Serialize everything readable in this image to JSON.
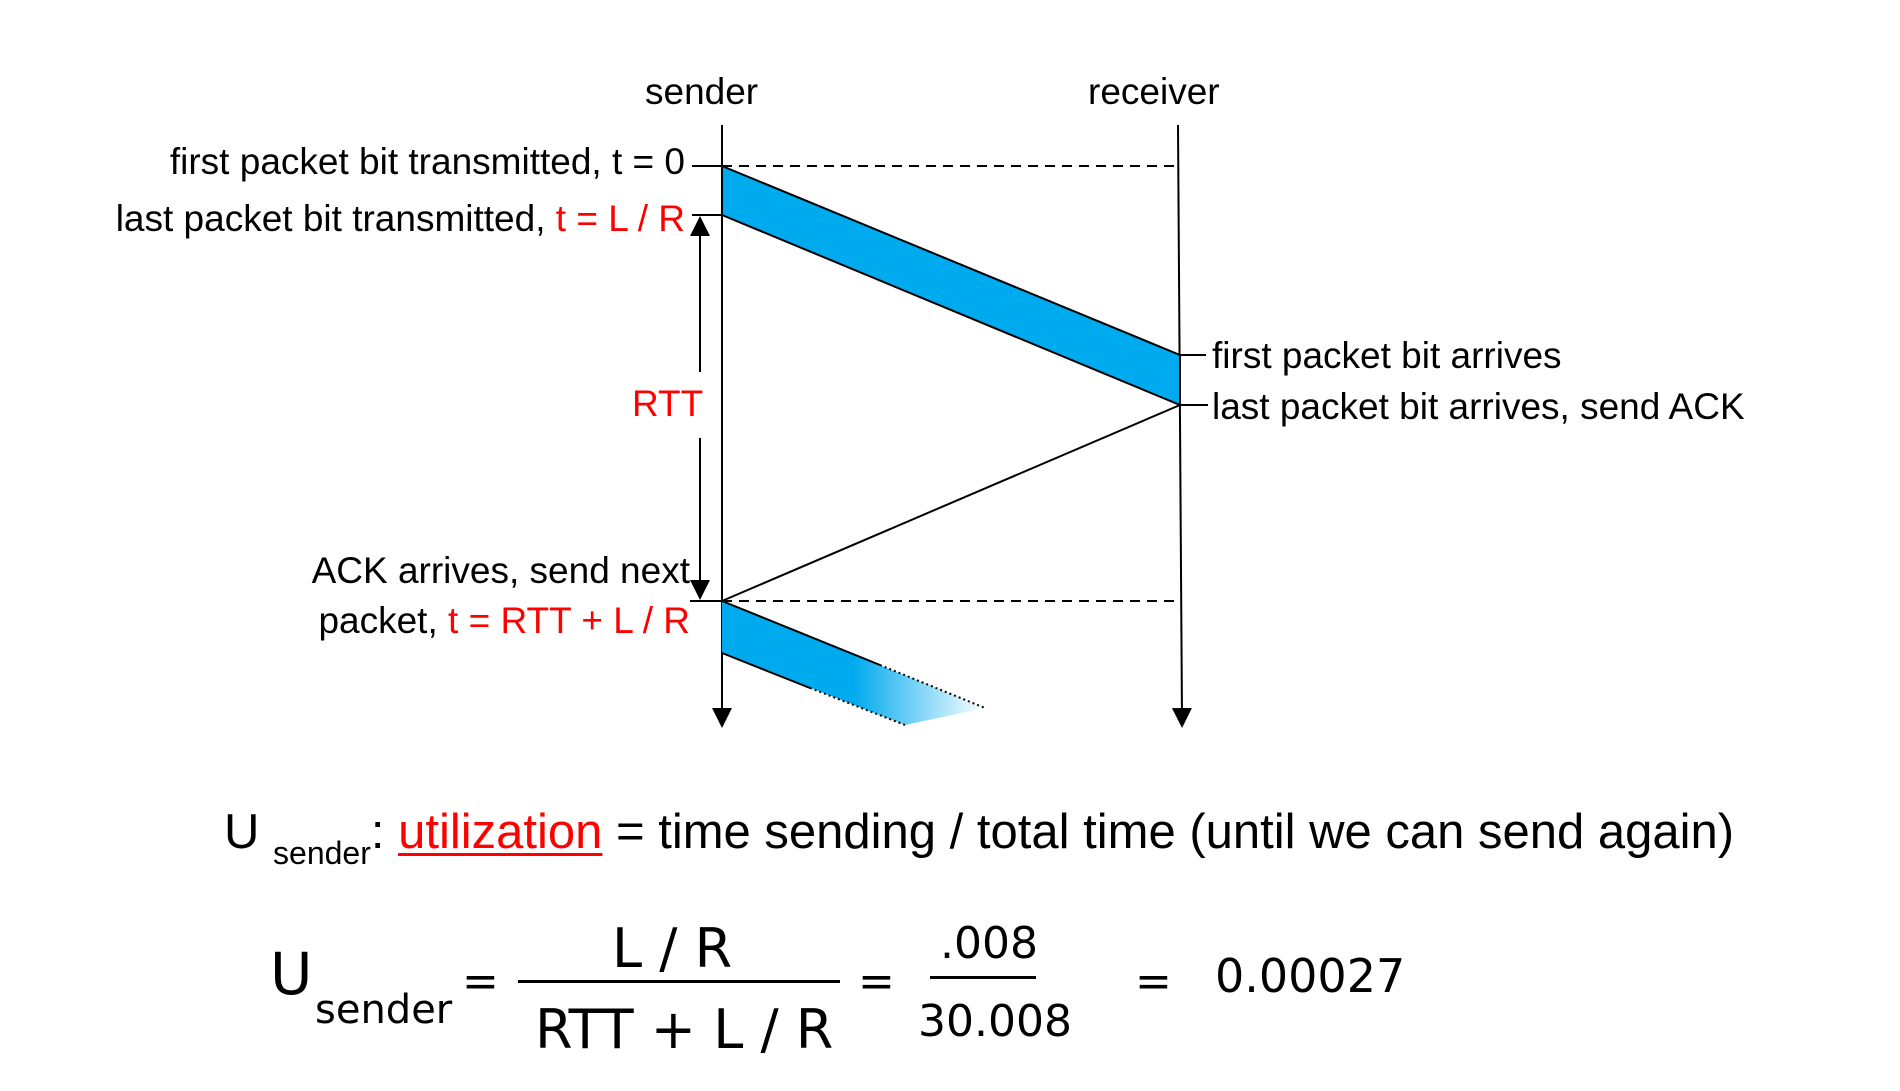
{
  "columns": {
    "sender": "sender",
    "receiver": "receiver"
  },
  "sender_labels": {
    "first_bit": "first packet bit transmitted, t = 0",
    "last_bit_prefix": "last packet bit transmitted, ",
    "last_bit_time": "t = L / R",
    "rtt": "RTT",
    "ack_line1": "ACK arrives, send next",
    "ack_line2_prefix": "packet, ",
    "ack_line2_time": "t = RTT + L / R"
  },
  "receiver_labels": {
    "first_arrives": "first packet bit arrives",
    "last_arrives": "last packet bit arrives, send ACK"
  },
  "utilization": {
    "symbol": "U",
    "subscript": "sender",
    "colon": ":",
    "term": "utilization",
    "definition": " = time sending / total time (until we can send again)"
  },
  "formula": {
    "symbol": "U",
    "subscript": "sender",
    "eq1": "=",
    "numerator": "L / R",
    "denominator": "RTT + L / R",
    "eq2": "=",
    "num_value": ".008",
    "den_value": "30.008",
    "eq3": "=",
    "result": "0.00027"
  },
  "colors": {
    "packet": "#00aaee",
    "highlight": "#ff0000"
  }
}
